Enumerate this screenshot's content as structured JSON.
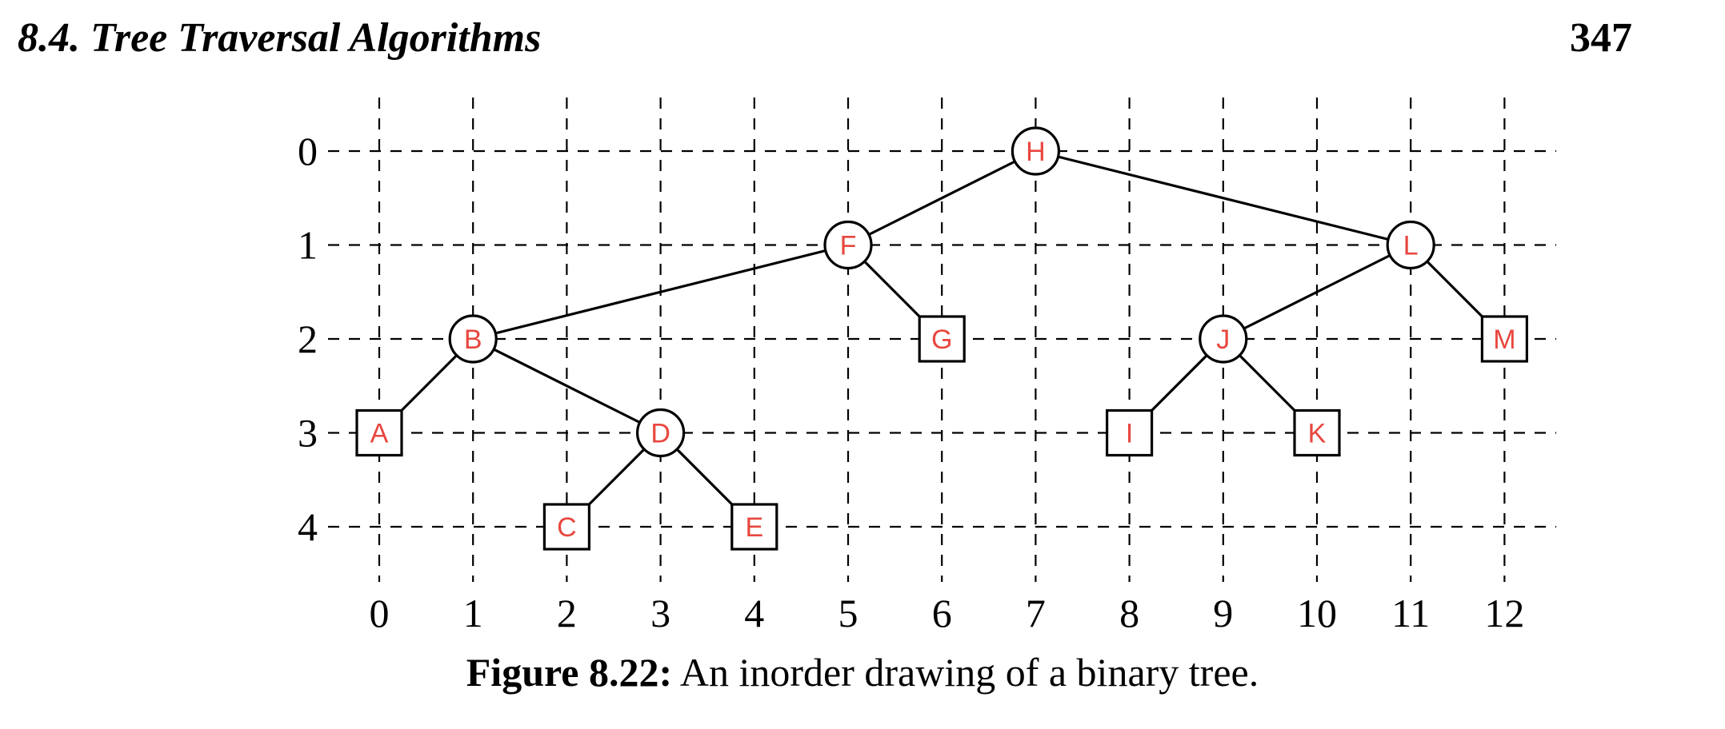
{
  "header": {
    "section_title": "8.4.  Tree Traversal Algorithms",
    "page_number": "347"
  },
  "figure": {
    "caption_label": "Figure 8.22:",
    "caption_text": " An inorder drawing of a binary tree.",
    "x_ticks": [
      "0",
      "1",
      "2",
      "3",
      "4",
      "5",
      "6",
      "7",
      "8",
      "9",
      "10",
      "11",
      "12"
    ],
    "y_ticks": [
      "0",
      "1",
      "2",
      "3",
      "4"
    ],
    "label_color": "#e8473f",
    "nodes": [
      {
        "id": "H",
        "x": 7,
        "y": 0,
        "shape": "circle"
      },
      {
        "id": "F",
        "x": 5,
        "y": 1,
        "shape": "circle"
      },
      {
        "id": "L",
        "x": 11,
        "y": 1,
        "shape": "circle"
      },
      {
        "id": "B",
        "x": 1,
        "y": 2,
        "shape": "circle"
      },
      {
        "id": "G",
        "x": 6,
        "y": 2,
        "shape": "square"
      },
      {
        "id": "J",
        "x": 9,
        "y": 2,
        "shape": "circle"
      },
      {
        "id": "M",
        "x": 12,
        "y": 2,
        "shape": "square"
      },
      {
        "id": "A",
        "x": 0,
        "y": 3,
        "shape": "square"
      },
      {
        "id": "D",
        "x": 3,
        "y": 3,
        "shape": "circle"
      },
      {
        "id": "I",
        "x": 8,
        "y": 3,
        "shape": "square"
      },
      {
        "id": "K",
        "x": 10,
        "y": 3,
        "shape": "square"
      },
      {
        "id": "C",
        "x": 2,
        "y": 4,
        "shape": "square"
      },
      {
        "id": "E",
        "x": 4,
        "y": 4,
        "shape": "square"
      }
    ],
    "edges": [
      [
        "H",
        "F"
      ],
      [
        "H",
        "L"
      ],
      [
        "F",
        "B"
      ],
      [
        "F",
        "G"
      ],
      [
        "L",
        "J"
      ],
      [
        "L",
        "M"
      ],
      [
        "B",
        "A"
      ],
      [
        "B",
        "D"
      ],
      [
        "J",
        "I"
      ],
      [
        "J",
        "K"
      ],
      [
        "D",
        "C"
      ],
      [
        "D",
        "E"
      ]
    ]
  }
}
